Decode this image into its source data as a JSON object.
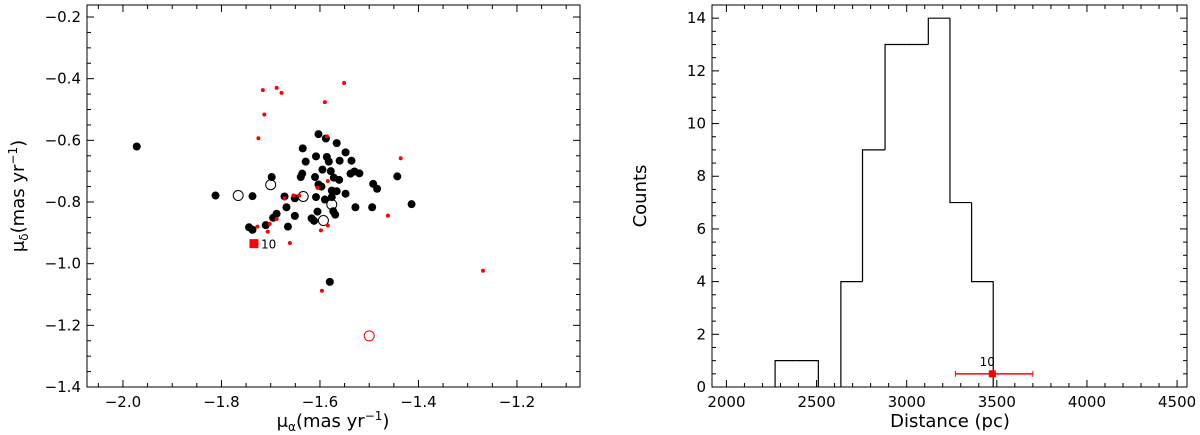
{
  "chart_data": [
    {
      "type": "scatter",
      "title": "",
      "xlabel": {
        "main": "μ",
        "sub": "α",
        "unit": "(mas yr",
        "sup": "−1",
        "close": ")"
      },
      "ylabel": {
        "main": "μ",
        "sub": "δ",
        "unit": "(mas yr",
        "sup": "−1",
        "close": ")"
      },
      "xlim": [
        -2.073,
        -1.072
      ],
      "ylim": [
        -1.4,
        -0.161
      ],
      "xticks": [
        -2.0,
        -1.8,
        -1.6,
        -1.4,
        -1.2
      ],
      "xtick_labels": [
        "−2.0",
        "−1.8",
        "−1.6",
        "−1.4",
        "−1.2"
      ],
      "yticks": [
        -1.4,
        -1.2,
        -1.0,
        -0.8,
        -0.6,
        -0.4,
        -0.2
      ],
      "ytick_labels": [
        "−1.4",
        "−1.2",
        "−1.0",
        "−0.8",
        "−0.6",
        "−0.4",
        "−0.2"
      ],
      "series": [
        {
          "name": "members-filled",
          "color": "#000000",
          "marker": "filled-circle",
          "points": [
            [
              -1.812,
              -0.779
            ],
            [
              -1.737,
              -0.781
            ],
            [
              -1.698,
              -0.719
            ],
            [
              -1.603,
              -0.58
            ],
            [
              -1.588,
              -0.594
            ],
            [
              -1.566,
              -0.609
            ],
            [
              -1.635,
              -0.626
            ],
            [
              -1.548,
              -0.639
            ],
            [
              -1.608,
              -0.652
            ],
            [
              -1.586,
              -0.654
            ],
            [
              -1.582,
              -0.669
            ],
            [
              -1.629,
              -0.669
            ],
            [
              -1.56,
              -0.666
            ],
            [
              -1.536,
              -0.666
            ],
            [
              -1.595,
              -0.695
            ],
            [
              -1.578,
              -0.7
            ],
            [
              -1.636,
              -0.708
            ],
            [
              -1.639,
              -0.719
            ],
            [
              -1.61,
              -0.719
            ],
            [
              -1.538,
              -0.708
            ],
            [
              -1.53,
              -0.701
            ],
            [
              -1.52,
              -0.707
            ],
            [
              -1.572,
              -0.721
            ],
            [
              -1.561,
              -0.728
            ],
            [
              -1.603,
              -0.743
            ],
            [
              -1.597,
              -0.75
            ],
            [
              -1.492,
              -0.741
            ],
            [
              -1.484,
              -0.757
            ],
            [
              -1.443,
              -0.717
            ],
            [
              -1.576,
              -0.763
            ],
            [
              -1.566,
              -0.765
            ],
            [
              -1.548,
              -0.773
            ],
            [
              -1.608,
              -0.784
            ],
            [
              -1.59,
              -0.792
            ],
            [
              -1.576,
              -0.784
            ],
            [
              -1.672,
              -0.782
            ],
            [
              -1.651,
              -0.788
            ],
            [
              -1.668,
              -0.817
            ],
            [
              -1.528,
              -0.817
            ],
            [
              -1.494,
              -0.817
            ],
            [
              -1.414,
              -0.807
            ],
            [
              -1.605,
              -0.831
            ],
            [
              -1.573,
              -0.83
            ],
            [
              -1.569,
              -0.841
            ],
            [
              -1.651,
              -0.845
            ],
            [
              -1.688,
              -0.838
            ],
            [
              -1.695,
              -0.851
            ],
            [
              -1.617,
              -0.853
            ],
            [
              -1.612,
              -0.861
            ],
            [
              -1.71,
              -0.875
            ],
            [
              -1.665,
              -0.88
            ],
            [
              -1.744,
              -0.882
            ],
            [
              -1.737,
              -0.89
            ],
            [
              -1.972,
              -0.62
            ],
            [
              -1.58,
              -1.059
            ]
          ]
        },
        {
          "name": "members-open",
          "color": "#000000",
          "marker": "open-circle",
          "points": [
            [
              -1.766,
              -0.779
            ],
            [
              -1.7,
              -0.744
            ],
            [
              -1.634,
              -0.782
            ],
            [
              -1.576,
              -0.808
            ],
            [
              -1.593,
              -0.86
            ]
          ]
        },
        {
          "name": "field-stars",
          "color": "#ff0000",
          "marker": "small-dot",
          "points": [
            [
              -1.716,
              -0.437
            ],
            [
              -1.688,
              -0.43
            ],
            [
              -1.678,
              -0.446
            ],
            [
              -1.551,
              -0.414
            ],
            [
              -1.59,
              -0.476
            ],
            [
              -1.713,
              -0.516
            ],
            [
              -1.725,
              -0.593
            ],
            [
              -1.436,
              -0.658
            ],
            [
              -1.584,
              -0.732
            ],
            [
              -1.605,
              -0.754
            ],
            [
              -1.654,
              -0.779
            ],
            [
              -1.642,
              -0.779
            ],
            [
              -1.672,
              -0.788
            ],
            [
              -1.688,
              -0.855
            ],
            [
              -1.702,
              -0.871
            ],
            [
              -1.727,
              -0.88
            ],
            [
              -1.706,
              -0.896
            ],
            [
              -1.661,
              -0.933
            ],
            [
              -1.598,
              -0.892
            ],
            [
              -1.584,
              -0.876
            ],
            [
              -1.462,
              -0.844
            ],
            [
              -1.586,
              -0.587
            ],
            [
              -1.269,
              -1.023
            ],
            [
              -1.596,
              -1.088
            ]
          ]
        },
        {
          "name": "red-open",
          "color": "#ff0000",
          "marker": "open-circle",
          "points": [
            [
              -1.5,
              -1.234
            ]
          ]
        },
        {
          "name": "target",
          "color": "#ff0000",
          "marker": "square",
          "points": [
            [
              -1.734,
              -0.935
            ]
          ],
          "label": "10"
        }
      ]
    },
    {
      "type": "histogram",
      "title": "",
      "xlabel": "Distance (pc)",
      "ylabel": "Counts",
      "xlim": [
        1920,
        4555
      ],
      "ylim": [
        0,
        14.5
      ],
      "xticks": [
        2000,
        2500,
        3000,
        3500,
        4000,
        4500
      ],
      "xtick_labels": [
        "2000",
        "2500",
        "3000",
        "3500",
        "4000",
        "4500"
      ],
      "yticks": [
        0,
        2,
        4,
        6,
        8,
        10,
        12,
        14
      ],
      "ytick_labels": [
        "0",
        "2",
        "4",
        "6",
        "8",
        "10",
        "12",
        "14"
      ],
      "bin_edges": [
        2270,
        2390,
        2510,
        2635,
        2755,
        2880,
        3000,
        3120,
        3240,
        3360,
        3480
      ],
      "counts": [
        1,
        1,
        0,
        4,
        9,
        13,
        13,
        14,
        7,
        4
      ],
      "color": "#000000",
      "marker": {
        "x": 3475,
        "y": 0.5,
        "xerr": [
          3270,
          3700
        ],
        "color": "#ff0000",
        "label": "10"
      }
    }
  ]
}
